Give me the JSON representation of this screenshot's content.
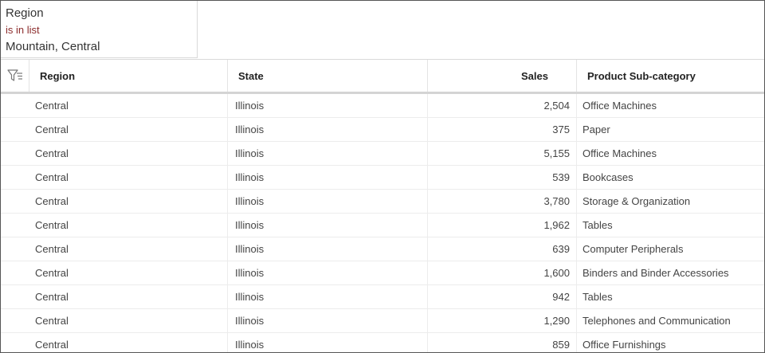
{
  "filter": {
    "field": "Region",
    "operator": "is in list",
    "values": "Mountain, Central"
  },
  "table": {
    "columns": [
      "Region",
      "State",
      "Sales",
      "Product Sub-category"
    ],
    "rows": [
      {
        "region": "Central",
        "state": "Illinois",
        "sales": "2,504",
        "subcategory": "Office Machines"
      },
      {
        "region": "Central",
        "state": "Illinois",
        "sales": "375",
        "subcategory": "Paper"
      },
      {
        "region": "Central",
        "state": "Illinois",
        "sales": "5,155",
        "subcategory": "Office Machines"
      },
      {
        "region": "Central",
        "state": "Illinois",
        "sales": "539",
        "subcategory": "Bookcases"
      },
      {
        "region": "Central",
        "state": "Illinois",
        "sales": "3,780",
        "subcategory": "Storage & Organization"
      },
      {
        "region": "Central",
        "state": "Illinois",
        "sales": "1,962",
        "subcategory": "Tables"
      },
      {
        "region": "Central",
        "state": "Illinois",
        "sales": "639",
        "subcategory": "Computer Peripherals"
      },
      {
        "region": "Central",
        "state": "Illinois",
        "sales": "1,600",
        "subcategory": "Binders and Binder Accessories"
      },
      {
        "region": "Central",
        "state": "Illinois",
        "sales": "942",
        "subcategory": "Tables"
      },
      {
        "region": "Central",
        "state": "Illinois",
        "sales": "1,290",
        "subcategory": "Telephones and Communication"
      },
      {
        "region": "Central",
        "state": "Illinois",
        "sales": "859",
        "subcategory": "Office Furnishings"
      }
    ]
  },
  "icons": {
    "header_filter": "filter-icon"
  },
  "colors": {
    "operator_text": "#8b2b2b",
    "border": "#555555"
  }
}
